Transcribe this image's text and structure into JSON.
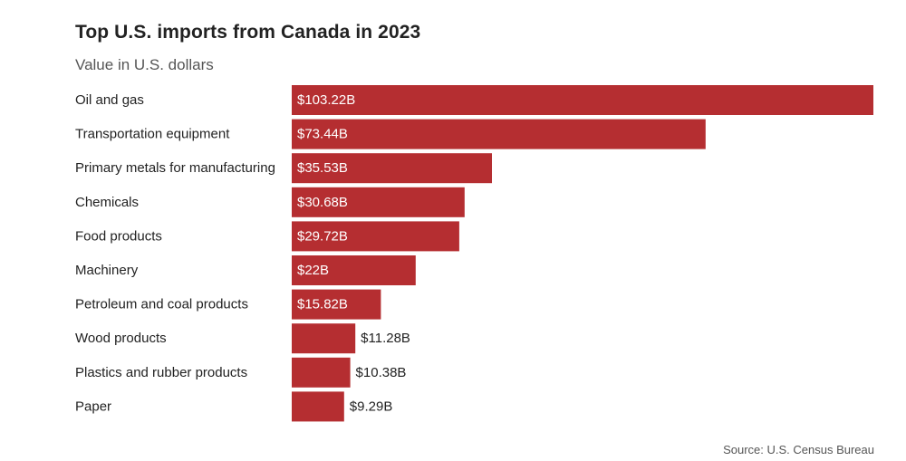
{
  "chart_data": {
    "type": "bar",
    "orientation": "horizontal",
    "title": "Top U.S. imports from Canada in 2023",
    "subtitle": "Value in U.S. dollars",
    "source": "Source: U.S. Census Bureau",
    "categories": [
      "Oil and gas",
      "Transportation equipment",
      "Primary metals for manufacturing",
      "Chemicals",
      "Food products",
      "Machinery",
      "Petroleum and coal products",
      "Wood products",
      "Plastics and rubber products",
      "Paper"
    ],
    "values": [
      103.22,
      73.44,
      35.53,
      30.68,
      29.72,
      22,
      15.82,
      11.28,
      10.38,
      9.29
    ],
    "value_labels": [
      "$103.22B",
      "$73.44B",
      "$35.53B",
      "$30.68B",
      "$29.72B",
      "$22B",
      "$15.82B",
      "$11.28B",
      "$10.38B",
      "$9.29B"
    ],
    "unit": "billion USD",
    "xlim": [
      0,
      103.22
    ],
    "bar_color": "#b52e31",
    "label_inside_color": "#ffffff",
    "label_outside_color": "#222222"
  }
}
